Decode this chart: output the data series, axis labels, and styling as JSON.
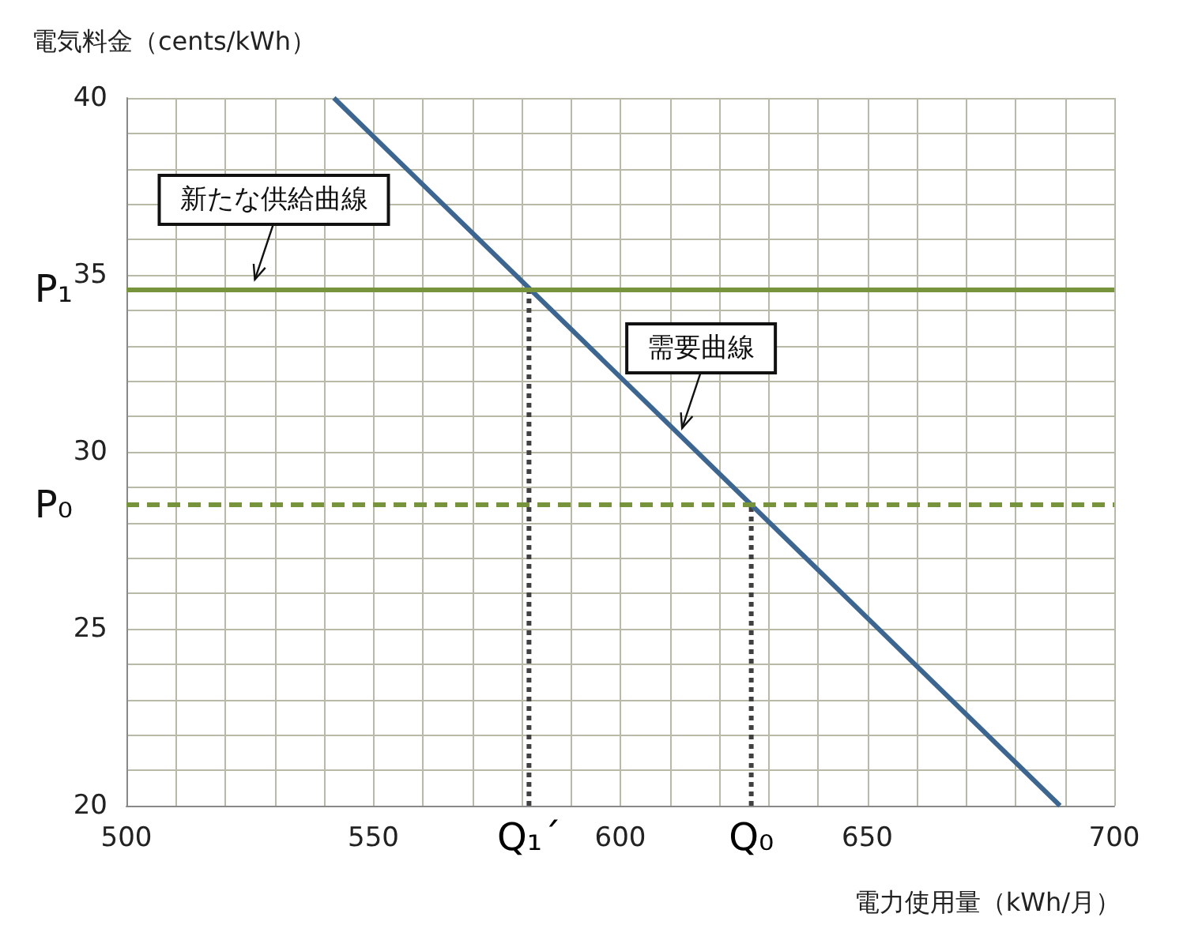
{
  "chart_data": {
    "type": "line",
    "xlabel": "電力使用量（kWh/月）",
    "ylabel": "電気料金（cents/kWh）",
    "xlim": [
      500,
      700
    ],
    "xticks": [
      500,
      550,
      600,
      650,
      700
    ],
    "ylim": [
      20,
      40
    ],
    "yticks": [
      20,
      25,
      30,
      35,
      40
    ],
    "grid": true,
    "marker": "none",
    "line_style": "solid",
    "series": [
      {
        "color": "#3c6590",
        "x": [
          542,
          689
        ],
        "values": [
          40,
          20
        ]
      },
      {
        "color": "#404040",
        "x": [
          581.5,
          581.5
        ],
        "values": [
          20,
          34.6
        ],
        "line_style": "dotted"
      },
      {
        "color": "#404040",
        "x": [
          626.5,
          626.5
        ],
        "values": [
          20,
          28.5
        ],
        "line_style": "dotted"
      }
    ],
    "ref_lines": [
      {
        "axis": "y",
        "value": 34.6,
        "label": "P₁",
        "color": "#77933c",
        "line_style": "solid"
      },
      {
        "axis": "y",
        "value": 28.5,
        "label": "P₀",
        "color": "#77933c",
        "line_style": "dashed"
      }
    ],
    "annotations": [
      {
        "text": "新たな供給曲線",
        "x": 526,
        "y": 34.6
      },
      {
        "text": "需要曲線",
        "x": 612.5,
        "y": 30.4
      },
      {
        "text": "Q₁´",
        "x": 581.5,
        "y": 20
      },
      {
        "text": "Q₀",
        "x": 626.5,
        "y": 20
      }
    ]
  }
}
